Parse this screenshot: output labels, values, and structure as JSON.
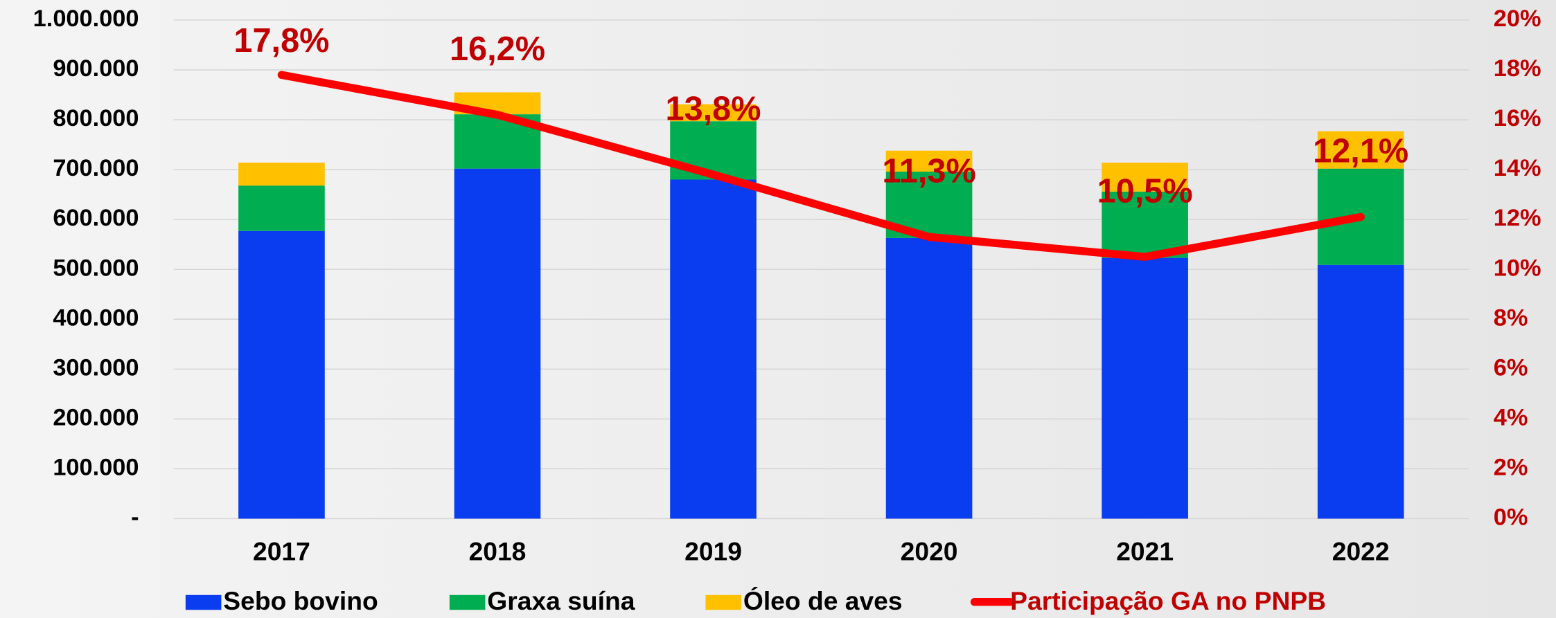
{
  "chart_data": {
    "type": "bar",
    "categories": [
      "2017",
      "2018",
      "2019",
      "2020",
      "2021",
      "2022"
    ],
    "series": [
      {
        "name": "Sebo bovino",
        "color": "#0a3cf0",
        "values": [
          577000,
          702000,
          680000,
          563000,
          523000,
          509000
        ]
      },
      {
        "name": "Graxa suína",
        "color": "#00ad50",
        "values": [
          91000,
          109000,
          117000,
          133000,
          133000,
          193000
        ]
      },
      {
        "name": "Óleo de aves",
        "color": "#ffc000",
        "values": [
          46000,
          44000,
          34000,
          42000,
          58000,
          75000
        ]
      },
      {
        "name": "Participação GA no PNPB",
        "color": "#ff0000",
        "type": "line",
        "axis": "y2",
        "values": [
          17.8,
          16.2,
          13.8,
          11.3,
          10.5,
          12.1
        ],
        "value_labels": [
          "17,8%",
          "16,2%",
          "13,8%",
          "11,3%",
          "10,5%",
          "12,1%"
        ]
      }
    ],
    "ylim": [
      0,
      1000000
    ],
    "yticks": [
      {
        "value": 0,
        "label": "-"
      },
      {
        "value": 100000,
        "label": "100.000"
      },
      {
        "value": 200000,
        "label": "200.000"
      },
      {
        "value": 300000,
        "label": "300.000"
      },
      {
        "value": 400000,
        "label": "400.000"
      },
      {
        "value": 500000,
        "label": "500.000"
      },
      {
        "value": 600000,
        "label": "600.000"
      },
      {
        "value": 700000,
        "label": "700.000"
      },
      {
        "value": 800000,
        "label": "800.000"
      },
      {
        "value": 900000,
        "label": "900.000"
      },
      {
        "value": 1000000,
        "label": "1.000.000"
      }
    ],
    "y2lim": [
      0,
      20
    ],
    "y2ticks": [
      {
        "value": 0,
        "label": "0%"
      },
      {
        "value": 2,
        "label": "2%"
      },
      {
        "value": 4,
        "label": "4%"
      },
      {
        "value": 6,
        "label": "6%"
      },
      {
        "value": 8,
        "label": "8%"
      },
      {
        "value": 10,
        "label": "10%"
      },
      {
        "value": 12,
        "label": "12%"
      },
      {
        "value": 14,
        "label": "14%"
      },
      {
        "value": 16,
        "label": "16%"
      },
      {
        "value": 18,
        "label": "18%"
      },
      {
        "value": 20,
        "label": "20%"
      }
    ],
    "grid": true,
    "legend": "bottom"
  }
}
